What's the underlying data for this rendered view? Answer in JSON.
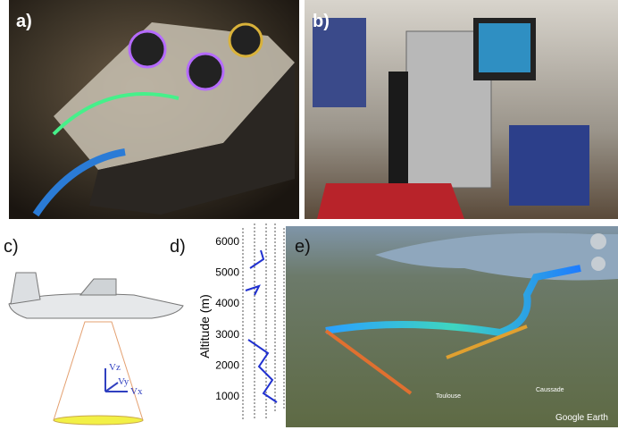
{
  "panels": [
    {
      "label": "a)"
    },
    {
      "label": "b)"
    },
    {
      "label": "c)",
      "axes": [
        "Vz",
        "Vy",
        "Vx"
      ]
    },
    {
      "label": "d)",
      "axis_label": "Altitude (m)",
      "ticks": [
        1000,
        2000,
        3000,
        4000,
        5000,
        6000
      ]
    },
    {
      "label": "e)",
      "places": [
        "Toulouse",
        "Caussade"
      ],
      "credit": "Google Earth"
    }
  ]
}
